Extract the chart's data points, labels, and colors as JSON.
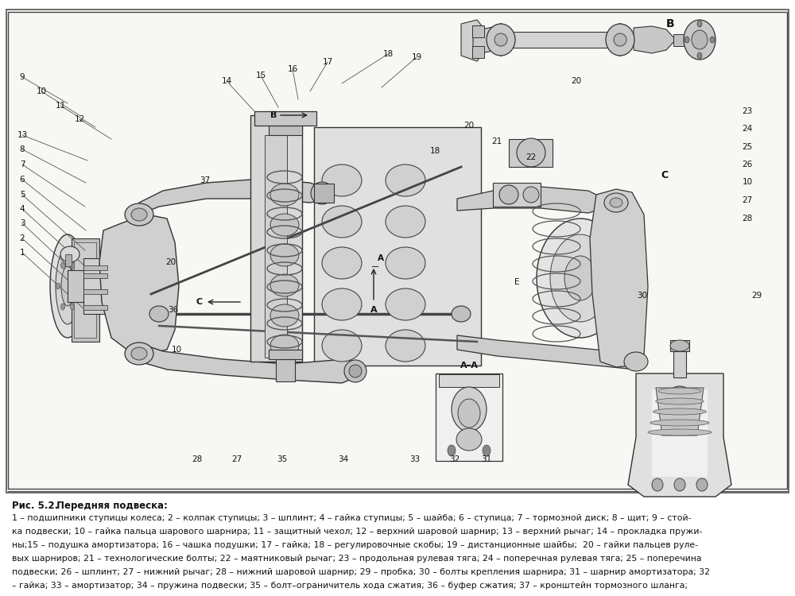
{
  "fig_width": 10.0,
  "fig_height": 7.5,
  "dpi": 100,
  "bg_color": "#ffffff",
  "text_color": "#000000",
  "diagram_bg": "#ffffff",
  "border_color": "#000000",
  "figure_label": "Рис. 5.2.",
  "figure_title": " Передняя подвеска:",
  "caption_text": "1 – подшипники ступицы колеса; 2 – колпак ступицы; 3 – шплинт; 4 – гайка ступицы; 5 – шайба; 6 – ступица; 7 – тормозной диск; 8 – щит; 9 – стой-",
  "caption_line2": "ка подвески; 10 – гайка пальца шарового шарнира; 11 – защитный чехол; 12 – верхний шаровой шарнир; 13 – верхний рычаг; 14 – прокладка пружи-",
  "caption_line3": "ны;15 – подушка амортизатора; 16 – чашка подушки; 17 – гайка; 18 – регулировочные скобы; 19 – дистанционные шайбы;  20 – гайки пальцев руле-",
  "caption_line4": "вых шарниров; 21 – технологические болты; 22 – маятниковый рычаг; 23 – продольная рулевая тяга; 24 – поперечная рулевая тяга; 25 – поперечина",
  "caption_line5": "подвески; 26 – шплинт; 27 – нижний рычаг; 28 – нижний шаровой шарнир; 29 – пробка; 30 – болты крепления шарнира; 31 – шарнир амортизатора; 32",
  "caption_line6": "– гайка; 33 – амортизатор; 34 – пружина подвески; 35 – болт–ограничитель хода сжатия; 36 – буфер сжатия; 37 – кронштейн тормозного шланга;"
}
